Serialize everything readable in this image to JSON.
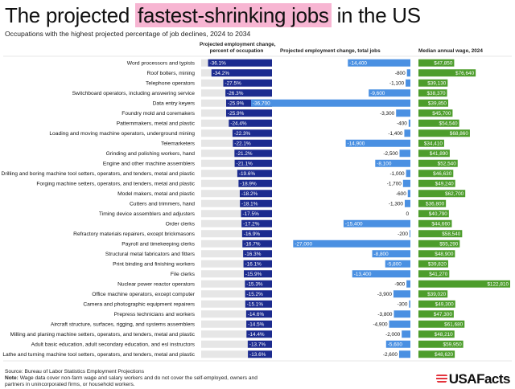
{
  "header": {
    "title_pre": "The projected ",
    "title_highlight": "fastest-shrinking jobs",
    "title_post": " in the US",
    "subtitle": "Occupations with the highest projected percentage of job declines, 2024 to 2034"
  },
  "column_headers": {
    "pct_line1": "Projected employment change,",
    "pct_line2": "percent of occupation",
    "total": "Projected employment change, total jobs",
    "wage": "Median annual wage, 2024"
  },
  "footer": {
    "source": "Source: Bureau of Labor Statistics Employment Projections",
    "note_label": "Note:",
    "note_text": " Wage data cover non-farm wage and salary workers and do not cover the self-employed, owners and partners in unincorporated firms, or household workers."
  },
  "brand": {
    "logo_text": "USAFacts"
  },
  "colors": {
    "pct_bar": "#1c2b8f",
    "pct_track": "#e6e6e6",
    "total_bar": "#4a90e2",
    "wage_bar": "#4d9d2c",
    "highlight": "#f7b5d2"
  },
  "chart_data": {
    "type": "table",
    "title": "The projected fastest-shrinking jobs in the US",
    "subtitle": "Occupations with the highest projected percentage of job declines, 2024 to 2034",
    "columns": [
      "Projected employment change, percent of occupation",
      "Projected employment change, total jobs",
      "Median annual wage, 2024"
    ],
    "pct_domain": [
      -40,
      0
    ],
    "total_domain": [
      -36700,
      0
    ],
    "wage_domain": [
      0,
      122810
    ],
    "rows": [
      {
        "occupation": "Word processors and typists",
        "pct": -36.1,
        "pct_label": "-36.1%",
        "total": -14400,
        "total_label": "-14,400",
        "wage": 47850,
        "wage_label": "$47,850"
      },
      {
        "occupation": "Roof bolters, mining",
        "pct": -34.2,
        "pct_label": "-34.2%",
        "total": -800,
        "total_label": "-800",
        "wage": 76640,
        "wage_label": "$76,640"
      },
      {
        "occupation": "Telephone operators",
        "pct": -27.5,
        "pct_label": "-27.5%",
        "total": -1100,
        "total_label": "-1,100",
        "wage": 39130,
        "wage_label": "$39,130"
      },
      {
        "occupation": "Switchboard operators, including answering service",
        "pct": -26.3,
        "pct_label": "-26.3%",
        "total": -9600,
        "total_label": "-9,600",
        "wage": 38370,
        "wage_label": "$38,370"
      },
      {
        "occupation": "Data entry keyers",
        "pct": -25.9,
        "pct_label": "-25.9%",
        "total": -36700,
        "total_label": "-36,700",
        "wage": 39850,
        "wage_label": "$39,850"
      },
      {
        "occupation": "Foundry mold and coremakers",
        "pct": -25.9,
        "pct_label": "-25.9%",
        "total": -3300,
        "total_label": "-3,300",
        "wage": 45700,
        "wage_label": "$45,700"
      },
      {
        "occupation": "Patternmakers, metal and plastic",
        "pct": -24.4,
        "pct_label": "-24.4%",
        "total": -400,
        "total_label": "-400",
        "wage": 54540,
        "wage_label": "$54,540"
      },
      {
        "occupation": "Loading and moving machine operators, underground mining",
        "pct": -22.3,
        "pct_label": "-22.3%",
        "total": -1400,
        "total_label": "-1,400",
        "wage": 68860,
        "wage_label": "$68,860"
      },
      {
        "occupation": "Telemarketers",
        "pct": -22.1,
        "pct_label": "-22.1%",
        "total": -14900,
        "total_label": "-14,900",
        "wage": 34410,
        "wage_label": "$34,410"
      },
      {
        "occupation": "Grinding and polishing workers, hand",
        "pct": -21.2,
        "pct_label": "-21.2%",
        "total": -2500,
        "total_label": "-2,500",
        "wage": 41890,
        "wage_label": "$41,890"
      },
      {
        "occupation": "Engine and other machine assemblers",
        "pct": -21.1,
        "pct_label": "-21.1%",
        "total": -8100,
        "total_label": "-8,100",
        "wage": 52540,
        "wage_label": "$52,540"
      },
      {
        "occupation": "Drilling and boring machine tool setters, operators, and tenders, metal and plastic",
        "pct": -19.6,
        "pct_label": "-19.6%",
        "total": -1000,
        "total_label": "-1,000",
        "wage": 46630,
        "wage_label": "$46,630"
      },
      {
        "occupation": "Forging machine setters, operators, and tenders, metal and plastic",
        "pct": -18.9,
        "pct_label": "-18.9%",
        "total": -1700,
        "total_label": "-1,700",
        "wage": 49240,
        "wage_label": "$49,240"
      },
      {
        "occupation": "Model makers, metal and plastic",
        "pct": -18.2,
        "pct_label": "-18.2%",
        "total": -600,
        "total_label": "-600",
        "wage": 62700,
        "wage_label": "$62,700"
      },
      {
        "occupation": "Cutters and trimmers, hand",
        "pct": -18.1,
        "pct_label": "-18.1%",
        "total": -1300,
        "total_label": "-1,300",
        "wage": 36800,
        "wage_label": "$36,800"
      },
      {
        "occupation": "Timing device assemblers and adjusters",
        "pct": -17.5,
        "pct_label": "-17.5%",
        "total": 0,
        "total_label": "0",
        "wage": 40790,
        "wage_label": "$40,790"
      },
      {
        "occupation": "Order clerks",
        "pct": -17.2,
        "pct_label": "-17.2%",
        "total": -15400,
        "total_label": "-15,400",
        "wage": 44660,
        "wage_label": "$44,660"
      },
      {
        "occupation": "Refractory materials repairers, except brickmasons",
        "pct": -16.9,
        "pct_label": "-16.9%",
        "total": -200,
        "total_label": "-200",
        "wage": 58540,
        "wage_label": "$58,540"
      },
      {
        "occupation": "Payroll and timekeeping clerks",
        "pct": -16.7,
        "pct_label": "-16.7%",
        "total": -27000,
        "total_label": "-27,000",
        "wage": 55290,
        "wage_label": "$55,290"
      },
      {
        "occupation": "Structural metal fabricators and fitters",
        "pct": -16.3,
        "pct_label": "-16.3%",
        "total": -8800,
        "total_label": "-8,800",
        "wage": 48900,
        "wage_label": "$48,900"
      },
      {
        "occupation": "Print binding and finishing workers",
        "pct": -16.1,
        "pct_label": "-16.1%",
        "total": -5800,
        "total_label": "-5,800",
        "wage": 39820,
        "wage_label": "$39,820"
      },
      {
        "occupation": "File clerks",
        "pct": -15.9,
        "pct_label": "-15.9%",
        "total": -13400,
        "total_label": "-13,400",
        "wage": 41270,
        "wage_label": "$41,270"
      },
      {
        "occupation": "Nuclear power reactor operators",
        "pct": -15.3,
        "pct_label": "-15.3%",
        "total": -900,
        "total_label": "-900",
        "wage": 122810,
        "wage_label": "$122,810"
      },
      {
        "occupation": "Office machine operators, except computer",
        "pct": -15.2,
        "pct_label": "-15.2%",
        "total": -3900,
        "total_label": "-3,900",
        "wage": 39020,
        "wage_label": "$39,020"
      },
      {
        "occupation": "Camera and photographic equipment repairers",
        "pct": -15.1,
        "pct_label": "-15.1%",
        "total": -300,
        "total_label": "-300",
        "wage": 49300,
        "wage_label": "$49,300"
      },
      {
        "occupation": "Prepress technicians and workers",
        "pct": -14.6,
        "pct_label": "-14.6%",
        "total": -3800,
        "total_label": "-3,800",
        "wage": 47300,
        "wage_label": "$47,300"
      },
      {
        "occupation": "Aircraft structure, surfaces, rigging, and systems assemblers",
        "pct": -14.5,
        "pct_label": "-14.5%",
        "total": -4900,
        "total_label": "-4,900",
        "wage": 61680,
        "wage_label": "$61,680"
      },
      {
        "occupation": "Milling and planing machine setters, operators, and tenders, metal and plastic",
        "pct": -14.4,
        "pct_label": "-14.4%",
        "total": -2000,
        "total_label": "-2,000",
        "wage": 48210,
        "wage_label": "$48,210"
      },
      {
        "occupation": "Adult basic education, adult secondary education, and esl instructors",
        "pct": -13.7,
        "pct_label": "-13.7%",
        "total": -5600,
        "total_label": "-5,600",
        "wage": 59950,
        "wage_label": "$59,950"
      },
      {
        "occupation": "Lathe and turning machine tool setters, operators, and tenders, metal and plastic",
        "pct": -13.6,
        "pct_label": "-13.6%",
        "total": -2600,
        "total_label": "-2,600",
        "wage": 48620,
        "wage_label": "$48,620"
      }
    ]
  }
}
